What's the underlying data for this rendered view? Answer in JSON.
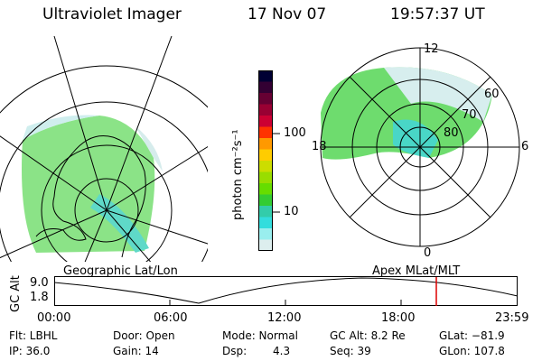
{
  "header": {
    "instrument": "Ultraviolet Imager",
    "date": "17 Nov 07",
    "time": "19:57:37 UT"
  },
  "colorbar": {
    "unit_label": "photon cm⁻²s⁻¹",
    "ticks": [
      "100",
      "10"
    ],
    "colors": [
      "#000033",
      "#330033",
      "#660033",
      "#990033",
      "#cc0033",
      "#ff3300",
      "#ff9900",
      "#ffcc00",
      "#ccdd00",
      "#99dd00",
      "#66dd00",
      "#33cc33",
      "#33ccaa",
      "#33dddd",
      "#99eeee",
      "#ddeeee"
    ]
  },
  "left_map": {
    "label": "Geographic Lat/Lon"
  },
  "right_map": {
    "label": "Apex MLat/MLT",
    "mlt_labels": [
      "12",
      "18",
      "6",
      "0"
    ],
    "mlat_labels": [
      "60",
      "70",
      "80"
    ]
  },
  "timeline": {
    "y_axis_label": "GC Alt",
    "y_ticks": [
      "9.0",
      "1.8"
    ],
    "x_ticks": [
      "00:00",
      "06:00",
      "12:00",
      "18:00",
      "23:59"
    ],
    "current_time_marker_color": "#dd0000"
  },
  "status": {
    "row1": {
      "filter": "Flt: LBHL",
      "door": "Door: Open",
      "mode": "Mode: Normal",
      "gc_alt": "GC Alt: 8.2 Re",
      "glat": "GLat: −81.9"
    },
    "row2": {
      "ip": "IP: 36.0",
      "gain": "Gain: 14",
      "dsp_label": "Dsp:",
      "dsp_value": "4.3",
      "seq": "Seq: 39",
      "glon": "GLon: 107.8"
    }
  }
}
